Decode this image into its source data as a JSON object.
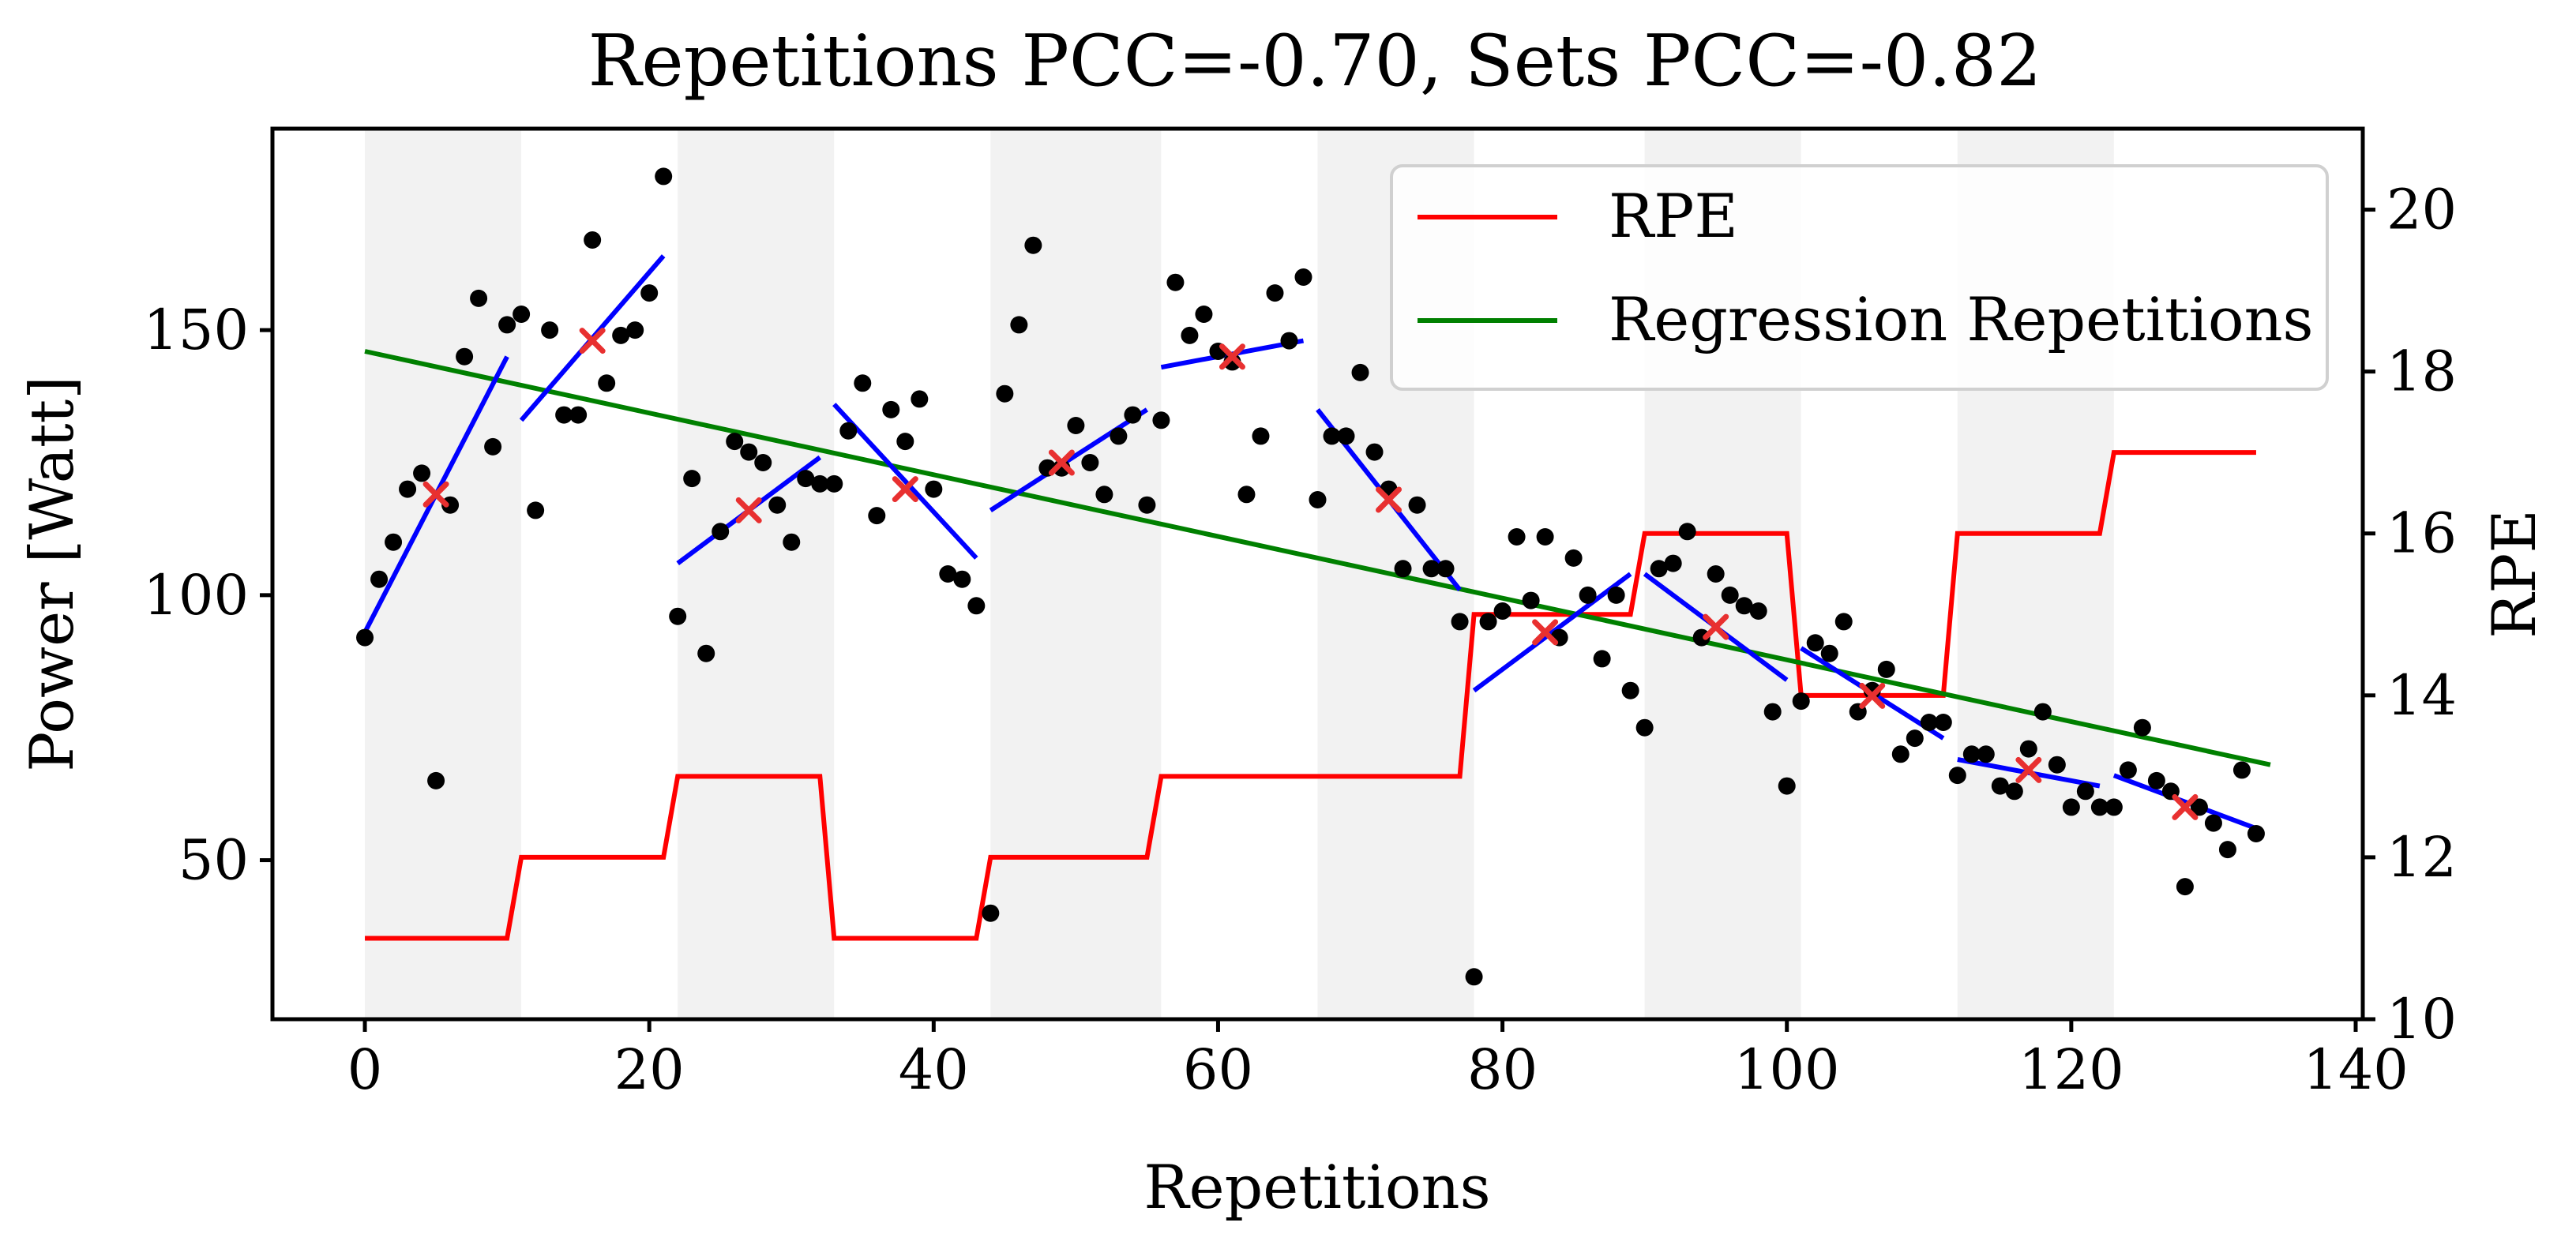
{
  "chart_data": {
    "type": "scatter",
    "title": "Repetitions PCC=-0.70, Sets PCC=-0.82",
    "xlabel": "Repetitions",
    "ylabel": "Power [Watt]",
    "y2label": "RPE",
    "xlim": [
      -6.5,
      140.5
    ],
    "ylim": [
      20,
      188
    ],
    "y2lim": [
      10,
      21
    ],
    "xticks": [
      0,
      20,
      40,
      60,
      80,
      100,
      120,
      140
    ],
    "yticks": [
      50,
      100,
      150
    ],
    "y2ticks": [
      10,
      12,
      14,
      16,
      18,
      20
    ],
    "grid": false,
    "legend_position": "top-right",
    "legend": [
      {
        "label": "RPE",
        "color": "#ff0000"
      },
      {
        "label": "Regression Repetitions",
        "color": "#008000"
      }
    ],
    "colors": {
      "points": "#000000",
      "set_mean_marker": "#e83030",
      "set_regression": "#0000ff",
      "set_shading": "#f2f2f2",
      "rpe": "#ff0000",
      "regression": "#008000"
    },
    "shaded_sets": [
      [
        0,
        11
      ],
      [
        22,
        33
      ],
      [
        44,
        56
      ],
      [
        67,
        78
      ],
      [
        90,
        101
      ],
      [
        112,
        123
      ]
    ],
    "points": [
      [
        0,
        92
      ],
      [
        1,
        103
      ],
      [
        2,
        110
      ],
      [
        3,
        120
      ],
      [
        4,
        123
      ],
      [
        5,
        65
      ],
      [
        6,
        117
      ],
      [
        7,
        145
      ],
      [
        8,
        156
      ],
      [
        9,
        128
      ],
      [
        10,
        151
      ],
      [
        11,
        153
      ],
      [
        12,
        116
      ],
      [
        13,
        150
      ],
      [
        14,
        134
      ],
      [
        15,
        134
      ],
      [
        16,
        167
      ],
      [
        17,
        140
      ],
      [
        18,
        149
      ],
      [
        19,
        150
      ],
      [
        20,
        157
      ],
      [
        21,
        179
      ],
      [
        22,
        96
      ],
      [
        23,
        122
      ],
      [
        24,
        89
      ],
      [
        25,
        112
      ],
      [
        26,
        129
      ],
      [
        27,
        127
      ],
      [
        28,
        125
      ],
      [
        29,
        117
      ],
      [
        30,
        110
      ],
      [
        31,
        122
      ],
      [
        32,
        121
      ],
      [
        33,
        121
      ],
      [
        34,
        131
      ],
      [
        35,
        140
      ],
      [
        36,
        115
      ],
      [
        37,
        135
      ],
      [
        38,
        129
      ],
      [
        39,
        137
      ],
      [
        40,
        120
      ],
      [
        41,
        104
      ],
      [
        42,
        103
      ],
      [
        43,
        98
      ],
      [
        44,
        40
      ],
      [
        45,
        138
      ],
      [
        46,
        151
      ],
      [
        47,
        166
      ],
      [
        48,
        124
      ],
      [
        49,
        124
      ],
      [
        50,
        132
      ],
      [
        51,
        125
      ],
      [
        52,
        119
      ],
      [
        53,
        130
      ],
      [
        54,
        134
      ],
      [
        55,
        117
      ],
      [
        56,
        133
      ],
      [
        57,
        159
      ],
      [
        58,
        149
      ],
      [
        59,
        153
      ],
      [
        60,
        146
      ],
      [
        61,
        144
      ],
      [
        62,
        119
      ],
      [
        63,
        130
      ],
      [
        64,
        157
      ],
      [
        65,
        148
      ],
      [
        66,
        160
      ],
      [
        67,
        118
      ],
      [
        68,
        130
      ],
      [
        69,
        130
      ],
      [
        70,
        142
      ],
      [
        71,
        127
      ],
      [
        72,
        120
      ],
      [
        73,
        105
      ],
      [
        74,
        117
      ],
      [
        75,
        105
      ],
      [
        76,
        105
      ],
      [
        77,
        95
      ],
      [
        78,
        28
      ],
      [
        79,
        95
      ],
      [
        80,
        97
      ],
      [
        81,
        111
      ],
      [
        82,
        99
      ],
      [
        83,
        111
      ],
      [
        84,
        92
      ],
      [
        85,
        107
      ],
      [
        86,
        100
      ],
      [
        87,
        88
      ],
      [
        88,
        100
      ],
      [
        89,
        82
      ],
      [
        90,
        75
      ],
      [
        91,
        105
      ],
      [
        92,
        106
      ],
      [
        93,
        112
      ],
      [
        94,
        92
      ],
      [
        95,
        104
      ],
      [
        96,
        100
      ],
      [
        97,
        98
      ],
      [
        98,
        97
      ],
      [
        99,
        78
      ],
      [
        100,
        64
      ],
      [
        101,
        80
      ],
      [
        102,
        91
      ],
      [
        103,
        89
      ],
      [
        104,
        95
      ],
      [
        105,
        78
      ],
      [
        106,
        82
      ],
      [
        107,
        86
      ],
      [
        108,
        70
      ],
      [
        109,
        73
      ],
      [
        110,
        76
      ],
      [
        111,
        76
      ],
      [
        112,
        66
      ],
      [
        113,
        70
      ],
      [
        114,
        70
      ],
      [
        115,
        64
      ],
      [
        116,
        63
      ],
      [
        117,
        71
      ],
      [
        118,
        78
      ],
      [
        119,
        68
      ],
      [
        120,
        60
      ],
      [
        121,
        63
      ],
      [
        122,
        60
      ],
      [
        123,
        60
      ],
      [
        124,
        67
      ],
      [
        125,
        75
      ],
      [
        126,
        65
      ],
      [
        127,
        63
      ],
      [
        128,
        45
      ],
      [
        129,
        60
      ],
      [
        130,
        57
      ],
      [
        131,
        52
      ],
      [
        132,
        67
      ],
      [
        133,
        55
      ]
    ],
    "set_means": [
      [
        5,
        119
      ],
      [
        16,
        148
      ],
      [
        27,
        116
      ],
      [
        38,
        120
      ],
      [
        49,
        125
      ],
      [
        61,
        145
      ],
      [
        72,
        118
      ],
      [
        83,
        93
      ],
      [
        95,
        94
      ],
      [
        106,
        81
      ],
      [
        117,
        67
      ],
      [
        128,
        60
      ]
    ],
    "set_regressions": [
      [
        [
          0,
          93
        ],
        [
          10,
          145
        ]
      ],
      [
        [
          11,
          133
        ],
        [
          21,
          164
        ]
      ],
      [
        [
          22,
          106
        ],
        [
          32,
          126
        ]
      ],
      [
        [
          33,
          136
        ],
        [
          43,
          107
        ]
      ],
      [
        [
          44,
          116
        ],
        [
          55,
          135
        ]
      ],
      [
        [
          56,
          143
        ],
        [
          66,
          148
        ]
      ],
      [
        [
          67,
          135
        ],
        [
          77,
          101
        ]
      ],
      [
        [
          78,
          82
        ],
        [
          89,
          104
        ]
      ],
      [
        [
          90,
          104
        ],
        [
          100,
          84
        ]
      ],
      [
        [
          101,
          90
        ],
        [
          111,
          73
        ]
      ],
      [
        [
          112,
          69
        ],
        [
          122,
          64
        ]
      ],
      [
        [
          123,
          66
        ],
        [
          133,
          56
        ]
      ]
    ],
    "regression_line": [
      [
        0,
        146
      ],
      [
        134,
        68
      ]
    ],
    "rpe_steps": [
      [
        0,
        11
      ],
      [
        10,
        11
      ],
      [
        11,
        12
      ],
      [
        21,
        12
      ],
      [
        22,
        13
      ],
      [
        32,
        13
      ],
      [
        33,
        11
      ],
      [
        43,
        11
      ],
      [
        44,
        12
      ],
      [
        55,
        12
      ],
      [
        56,
        13
      ],
      [
        77,
        13
      ],
      [
        78,
        15
      ],
      [
        89,
        15
      ],
      [
        90,
        16
      ],
      [
        100,
        16
      ],
      [
        101,
        14
      ],
      [
        111,
        14
      ],
      [
        112,
        16
      ],
      [
        122,
        16
      ],
      [
        123,
        17
      ],
      [
        133,
        17
      ]
    ]
  }
}
